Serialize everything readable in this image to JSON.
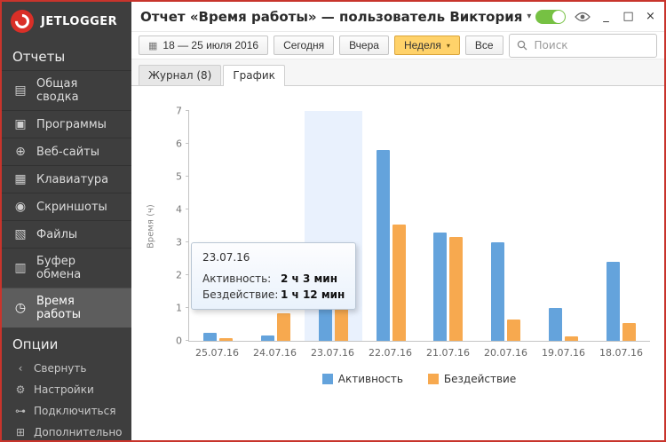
{
  "window": {
    "title": "Отчет «Время работы» — пользователь Виктория",
    "title_dropdown_glyph": "▾",
    "controls": {
      "minimize_glyph": "_",
      "maximize_glyph": "□",
      "close_glyph": "×"
    }
  },
  "sidebar": {
    "logo_text": "JETLOGGER",
    "sections": [
      {
        "label": "Отчеты",
        "items": [
          {
            "label": "Общая сводка",
            "glyph": "▤"
          },
          {
            "label": "Программы",
            "glyph": "▣"
          },
          {
            "label": "Веб-сайты",
            "glyph": "⊕"
          },
          {
            "label": "Клавиатура",
            "glyph": "▦"
          },
          {
            "label": "Скриншоты",
            "glyph": "◉"
          },
          {
            "label": "Файлы",
            "glyph": "▧"
          },
          {
            "label": "Буфер обмена",
            "glyph": "▥"
          },
          {
            "label": "Время работы",
            "glyph": "◷"
          }
        ]
      },
      {
        "label": "Опции",
        "items": [
          {
            "label": "Свернуть",
            "glyph": "‹"
          },
          {
            "label": "Настройки",
            "glyph": "⚙"
          },
          {
            "label": "Подключиться",
            "glyph": "⊶"
          },
          {
            "label": "Дополнительно",
            "glyph": "⊞"
          }
        ]
      }
    ]
  },
  "toolbar": {
    "calendar_glyph": "▦",
    "date_range": "18 — 25 июля 2016",
    "today_label": "Сегодня",
    "yesterday_label": "Вчера",
    "week_label": "Неделя",
    "week_dropdown_glyph": "▾",
    "all_label": "Все",
    "search_placeholder": "Поиск"
  },
  "tabs": {
    "journal_label": "Журнал (8)",
    "chart_label": "График"
  },
  "tooltip": {
    "date": "23.07.16",
    "rows": [
      {
        "label": "Активность:",
        "value": "2 ч 3 мин"
      },
      {
        "label": "Бездействие:",
        "value": "1 ч 12 мин"
      }
    ]
  },
  "chart_data": {
    "type": "bar",
    "title": "",
    "categories": [
      "25.07.16",
      "24.07.16",
      "23.07.16",
      "22.07.16",
      "21.07.16",
      "20.07.16",
      "19.07.16",
      "18.07.16"
    ],
    "series": [
      {
        "name": "Активность",
        "color": "#64a3dc",
        "values": [
          0.25,
          0.17,
          2.05,
          5.8,
          3.3,
          3.0,
          1.0,
          2.4
        ]
      },
      {
        "name": "Бездействие",
        "color": "#f7a94f",
        "values": [
          0.08,
          0.85,
          1.2,
          3.55,
          3.17,
          0.65,
          0.13,
          0.55
        ]
      }
    ],
    "xlabel": "",
    "ylabel": "Время (ч)",
    "ylim": [
      0,
      7
    ],
    "yticks": [
      0,
      1,
      2,
      3,
      4,
      5,
      6,
      7
    ],
    "grid": false,
    "legend_position": "bottom",
    "highlighted_category": "23.07.16",
    "highlight_color": "#e9f1fd"
  },
  "colors": {
    "accent_red": "#d92f27",
    "toggle_green": "#76c143",
    "week_button_bg": "#ffd26a",
    "activity_blue": "#64a3dc",
    "idle_orange": "#f7a94f"
  }
}
